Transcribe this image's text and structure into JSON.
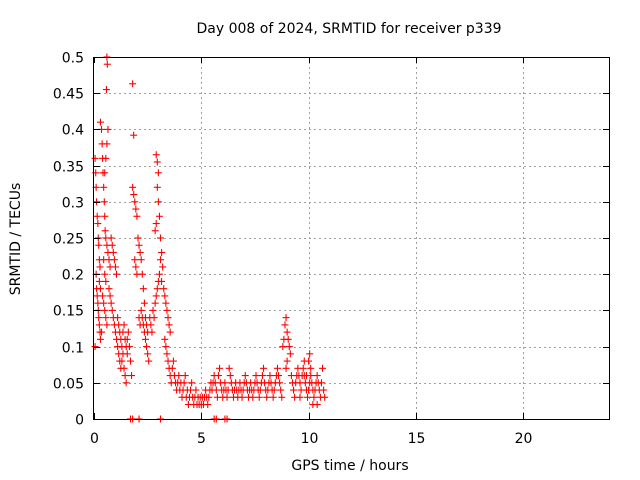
{
  "chart_data": {
    "type": "scatter",
    "title": "Day 008 of 2024, SRMTID for receiver p339",
    "xlabel": "GPS time / hours",
    "ylabel": "SRMTID / TECUs",
    "xlim": [
      0,
      24
    ],
    "ylim": [
      0,
      0.5
    ],
    "x_ticks": [
      0,
      5,
      10,
      15,
      20
    ],
    "y_ticks": [
      0,
      0.05,
      0.1,
      0.15,
      0.2,
      0.25,
      0.3,
      0.35,
      0.4,
      0.45,
      0.5
    ],
    "x_tick_labels": [
      "0",
      "5",
      "10",
      "15",
      "20"
    ],
    "y_tick_labels": [
      "0",
      "0.05",
      "0.1",
      "0.15",
      "0.2",
      "0.25",
      "0.3",
      "0.35",
      "0.4",
      "0.45",
      "0.5"
    ],
    "grid": true,
    "marker": "plus",
    "color": "#ff0000",
    "series": [
      {
        "points": [
          [
            0.05,
            0.36
          ],
          [
            0.08,
            0.34
          ],
          [
            0.1,
            0.32
          ],
          [
            0.12,
            0.3
          ],
          [
            0.15,
            0.28
          ],
          [
            0.18,
            0.27
          ],
          [
            0.2,
            0.25
          ],
          [
            0.22,
            0.24
          ],
          [
            0.25,
            0.22
          ],
          [
            0.28,
            0.21
          ],
          [
            0.1,
            0.2
          ],
          [
            0.12,
            0.18
          ],
          [
            0.15,
            0.17
          ],
          [
            0.18,
            0.16
          ],
          [
            0.2,
            0.15
          ],
          [
            0.22,
            0.14
          ],
          [
            0.25,
            0.13
          ],
          [
            0.28,
            0.12
          ],
          [
            0.3,
            0.11
          ],
          [
            0.05,
            0.1
          ],
          [
            0.3,
            0.41
          ],
          [
            0.35,
            0.4
          ],
          [
            0.38,
            0.38
          ],
          [
            0.4,
            0.36
          ],
          [
            0.42,
            0.34
          ],
          [
            0.45,
            0.32
          ],
          [
            0.48,
            0.3
          ],
          [
            0.5,
            0.28
          ],
          [
            0.52,
            0.26
          ],
          [
            0.55,
            0.25
          ],
          [
            0.6,
            0.5
          ],
          [
            0.62,
            0.49
          ],
          [
            0.58,
            0.455
          ],
          [
            0.65,
            0.4
          ],
          [
            0.6,
            0.38
          ],
          [
            0.55,
            0.36
          ],
          [
            0.5,
            0.34
          ],
          [
            0.45,
            0.22
          ],
          [
            0.5,
            0.2
          ],
          [
            0.55,
            0.19
          ],
          [
            0.6,
            0.24
          ],
          [
            0.65,
            0.23
          ],
          [
            0.7,
            0.22
          ],
          [
            0.75,
            0.21
          ],
          [
            0.8,
            0.25
          ],
          [
            0.85,
            0.24
          ],
          [
            0.9,
            0.23
          ],
          [
            0.95,
            0.22
          ],
          [
            1.0,
            0.21
          ],
          [
            1.05,
            0.2
          ],
          [
            0.4,
            0.17
          ],
          [
            0.45,
            0.16
          ],
          [
            0.5,
            0.15
          ],
          [
            0.55,
            0.14
          ],
          [
            0.6,
            0.13
          ],
          [
            0.35,
            0.12
          ],
          [
            0.3,
            0.18
          ],
          [
            0.25,
            0.19
          ],
          [
            0.7,
            0.18
          ],
          [
            0.75,
            0.17
          ],
          [
            0.8,
            0.16
          ],
          [
            0.85,
            0.15
          ],
          [
            0.9,
            0.14
          ],
          [
            0.95,
            0.13
          ],
          [
            1.0,
            0.12
          ],
          [
            1.05,
            0.11
          ],
          [
            1.1,
            0.1
          ],
          [
            1.15,
            0.09
          ],
          [
            1.2,
            0.08
          ],
          [
            1.25,
            0.07
          ],
          [
            1.1,
            0.14
          ],
          [
            1.15,
            0.13
          ],
          [
            1.2,
            0.12
          ],
          [
            1.25,
            0.11
          ],
          [
            1.3,
            0.1
          ],
          [
            1.35,
            0.12
          ],
          [
            1.4,
            0.13
          ],
          [
            1.45,
            0.11
          ],
          [
            1.5,
            0.1
          ],
          [
            1.55,
            0.09
          ],
          [
            1.3,
            0.08
          ],
          [
            1.35,
            0.09
          ],
          [
            1.4,
            0.07
          ],
          [
            1.45,
            0.06
          ],
          [
            1.5,
            0.05
          ],
          [
            1.55,
            0.11
          ],
          [
            1.6,
            0.12
          ],
          [
            1.65,
            0.1
          ],
          [
            1.7,
            0.08
          ],
          [
            1.75,
            0.06
          ],
          [
            1.8,
            0.463
          ],
          [
            1.85,
            0.392
          ],
          [
            1.8,
            0.32
          ],
          [
            1.85,
            0.31
          ],
          [
            1.9,
            0.3
          ],
          [
            1.95,
            0.29
          ],
          [
            2.0,
            0.28
          ],
          [
            1.9,
            0.22
          ],
          [
            1.95,
            0.21
          ],
          [
            2.0,
            0.2
          ],
          [
            2.05,
            0.25
          ],
          [
            2.1,
            0.24
          ],
          [
            2.15,
            0.23
          ],
          [
            2.2,
            0.22
          ],
          [
            2.25,
            0.2
          ],
          [
            2.3,
            0.18
          ],
          [
            2.35,
            0.16
          ],
          [
            2.4,
            0.14
          ],
          [
            2.45,
            0.13
          ],
          [
            2.5,
            0.12
          ],
          [
            2.1,
            0.14
          ],
          [
            2.15,
            0.13
          ],
          [
            2.2,
            0.15
          ],
          [
            2.25,
            0.14
          ],
          [
            2.3,
            0.13
          ],
          [
            2.35,
            0.12
          ],
          [
            2.4,
            0.11
          ],
          [
            2.45,
            0.1
          ],
          [
            2.5,
            0.09
          ],
          [
            2.55,
            0.08
          ],
          [
            2.6,
            0.14
          ],
          [
            2.65,
            0.13
          ],
          [
            2.7,
            0.12
          ],
          [
            2.75,
            0.15
          ],
          [
            2.8,
            0.14
          ],
          [
            2.85,
            0.16
          ],
          [
            2.9,
            0.17
          ],
          [
            2.95,
            0.18
          ],
          [
            3.0,
            0.19
          ],
          [
            3.05,
            0.2
          ],
          [
            2.9,
            0.365
          ],
          [
            2.95,
            0.355
          ],
          [
            3.0,
            0.34
          ],
          [
            2.95,
            0.32
          ],
          [
            3.0,
            0.3
          ],
          [
            3.05,
            0.28
          ],
          [
            2.9,
            0.27
          ],
          [
            2.85,
            0.26
          ],
          [
            3.1,
            0.25
          ],
          [
            3.15,
            0.23
          ],
          [
            3.1,
            0.22
          ],
          [
            3.2,
            0.21
          ],
          [
            3.15,
            0.19
          ],
          [
            3.25,
            0.18
          ],
          [
            3.3,
            0.17
          ],
          [
            3.35,
            0.16
          ],
          [
            3.4,
            0.15
          ],
          [
            3.45,
            0.14
          ],
          [
            3.5,
            0.13
          ],
          [
            3.55,
            0.12
          ],
          [
            3.3,
            0.11
          ],
          [
            3.35,
            0.1
          ],
          [
            3.4,
            0.09
          ],
          [
            3.45,
            0.08
          ],
          [
            3.5,
            0.07
          ],
          [
            3.55,
            0.06
          ],
          [
            3.6,
            0.05
          ],
          [
            3.65,
            0.07
          ],
          [
            3.7,
            0.08
          ],
          [
            3.75,
            0.06
          ],
          [
            3.8,
            0.05
          ],
          [
            3.85,
            0.04
          ],
          [
            3.9,
            0.05
          ],
          [
            3.95,
            0.06
          ],
          [
            4.0,
            0.04
          ],
          [
            4.05,
            0.05
          ],
          [
            4.1,
            0.03
          ],
          [
            4.15,
            0.04
          ],
          [
            4.2,
            0.05
          ],
          [
            4.25,
            0.06
          ],
          [
            4.3,
            0.03
          ],
          [
            4.35,
            0.04
          ],
          [
            4.4,
            0.02
          ],
          [
            4.45,
            0.03
          ],
          [
            4.5,
            0.04
          ],
          [
            4.55,
            0.05
          ],
          [
            4.6,
            0.03
          ],
          [
            4.65,
            0.02
          ],
          [
            4.7,
            0.03
          ],
          [
            4.75,
            0.04
          ],
          [
            4.8,
            0.02
          ],
          [
            4.85,
            0.03
          ],
          [
            4.9,
            0.02
          ],
          [
            4.95,
            0.03
          ],
          [
            5.0,
            0.02
          ],
          [
            5.05,
            0.03
          ],
          [
            5.1,
            0.02
          ],
          [
            5.15,
            0.03
          ],
          [
            5.2,
            0.04
          ],
          [
            5.25,
            0.03
          ],
          [
            5.3,
            0.02
          ],
          [
            5.35,
            0.03
          ],
          [
            5.4,
            0.04
          ],
          [
            5.45,
            0.05
          ],
          [
            5.5,
            0.04
          ],
          [
            5.55,
            0.05
          ],
          [
            5.6,
            0.06
          ],
          [
            5.65,
            0.05
          ],
          [
            5.7,
            0.04
          ],
          [
            5.75,
            0.03
          ],
          [
            5.8,
            0.06
          ],
          [
            5.85,
            0.07
          ],
          [
            5.9,
            0.05
          ],
          [
            5.95,
            0.04
          ],
          [
            6.0,
            0.03
          ],
          [
            6.05,
            0.04
          ],
          [
            6.1,
            0.05
          ],
          [
            6.15,
            0.04
          ],
          [
            6.2,
            0.03
          ],
          [
            6.25,
            0.04
          ],
          [
            6.3,
            0.07
          ],
          [
            6.35,
            0.06
          ],
          [
            6.4,
            0.05
          ],
          [
            6.45,
            0.04
          ],
          [
            6.5,
            0.03
          ],
          [
            6.55,
            0.04
          ],
          [
            6.6,
            0.05
          ],
          [
            6.65,
            0.04
          ],
          [
            6.7,
            0.03
          ],
          [
            6.75,
            0.04
          ],
          [
            6.8,
            0.05
          ],
          [
            6.85,
            0.04
          ],
          [
            6.9,
            0.03
          ],
          [
            6.95,
            0.04
          ],
          [
            7.0,
            0.05
          ],
          [
            7.05,
            0.06
          ],
          [
            7.1,
            0.05
          ],
          [
            7.15,
            0.04
          ],
          [
            7.2,
            0.03
          ],
          [
            7.25,
            0.04
          ],
          [
            7.3,
            0.05
          ],
          [
            7.35,
            0.04
          ],
          [
            7.4,
            0.03
          ],
          [
            7.45,
            0.04
          ],
          [
            7.5,
            0.05
          ],
          [
            7.55,
            0.06
          ],
          [
            7.6,
            0.05
          ],
          [
            7.65,
            0.04
          ],
          [
            7.7,
            0.03
          ],
          [
            7.75,
            0.04
          ],
          [
            7.8,
            0.05
          ],
          [
            7.85,
            0.06
          ],
          [
            7.9,
            0.07
          ],
          [
            7.95,
            0.05
          ],
          [
            8.0,
            0.04
          ],
          [
            8.05,
            0.03
          ],
          [
            8.1,
            0.04
          ],
          [
            8.15,
            0.05
          ],
          [
            8.2,
            0.06
          ],
          [
            8.25,
            0.05
          ],
          [
            8.3,
            0.04
          ],
          [
            8.35,
            0.03
          ],
          [
            8.4,
            0.04
          ],
          [
            8.45,
            0.05
          ],
          [
            8.5,
            0.06
          ],
          [
            8.55,
            0.07
          ],
          [
            8.6,
            0.06
          ],
          [
            8.65,
            0.05
          ],
          [
            8.7,
            0.04
          ],
          [
            8.75,
            0.03
          ],
          [
            8.8,
            0.1
          ],
          [
            8.85,
            0.11
          ],
          [
            8.9,
            0.13
          ],
          [
            8.95,
            0.14
          ],
          [
            9.0,
            0.12
          ],
          [
            9.05,
            0.11
          ],
          [
            9.1,
            0.1
          ],
          [
            9.15,
            0.09
          ],
          [
            9.0,
            0.08
          ],
          [
            8.95,
            0.07
          ],
          [
            9.2,
            0.06
          ],
          [
            9.25,
            0.05
          ],
          [
            9.3,
            0.04
          ],
          [
            9.35,
            0.03
          ],
          [
            9.4,
            0.05
          ],
          [
            9.45,
            0.06
          ],
          [
            9.5,
            0.07
          ],
          [
            9.55,
            0.06
          ],
          [
            9.6,
            0.05
          ],
          [
            9.65,
            0.04
          ],
          [
            9.7,
            0.06
          ],
          [
            9.75,
            0.07
          ],
          [
            9.8,
            0.06
          ],
          [
            9.85,
            0.05
          ],
          [
            9.9,
            0.04
          ],
          [
            9.95,
            0.03
          ],
          [
            10.0,
            0.04
          ],
          [
            10.05,
            0.05
          ],
          [
            10.1,
            0.06
          ],
          [
            10.15,
            0.05
          ],
          [
            10.2,
            0.04
          ],
          [
            10.25,
            0.03
          ],
          [
            10.3,
            0.04
          ],
          [
            10.35,
            0.05
          ],
          [
            10.4,
            0.06
          ],
          [
            10.45,
            0.05
          ],
          [
            10.5,
            0.04
          ],
          [
            10.55,
            0.03
          ],
          [
            10.6,
            0.05
          ],
          [
            10.65,
            0.07
          ],
          [
            10.0,
            0.08
          ],
          [
            10.05,
            0.09
          ],
          [
            10.1,
            0.07
          ],
          [
            9.9,
            0.06
          ],
          [
            9.8,
            0.08
          ],
          [
            10.7,
            0.04
          ],
          [
            10.75,
            0.03
          ],
          [
            10.4,
            0.02
          ],
          [
            10.2,
            0.02
          ],
          [
            9.6,
            0.03
          ],
          [
            1.7,
            0.0
          ],
          [
            1.8,
            0.0
          ],
          [
            2.1,
            0.0
          ],
          [
            3.1,
            0.0
          ],
          [
            5.6,
            0.0
          ],
          [
            5.7,
            0.0
          ],
          [
            6.1,
            0.0
          ],
          [
            6.2,
            0.0
          ]
        ]
      }
    ]
  }
}
